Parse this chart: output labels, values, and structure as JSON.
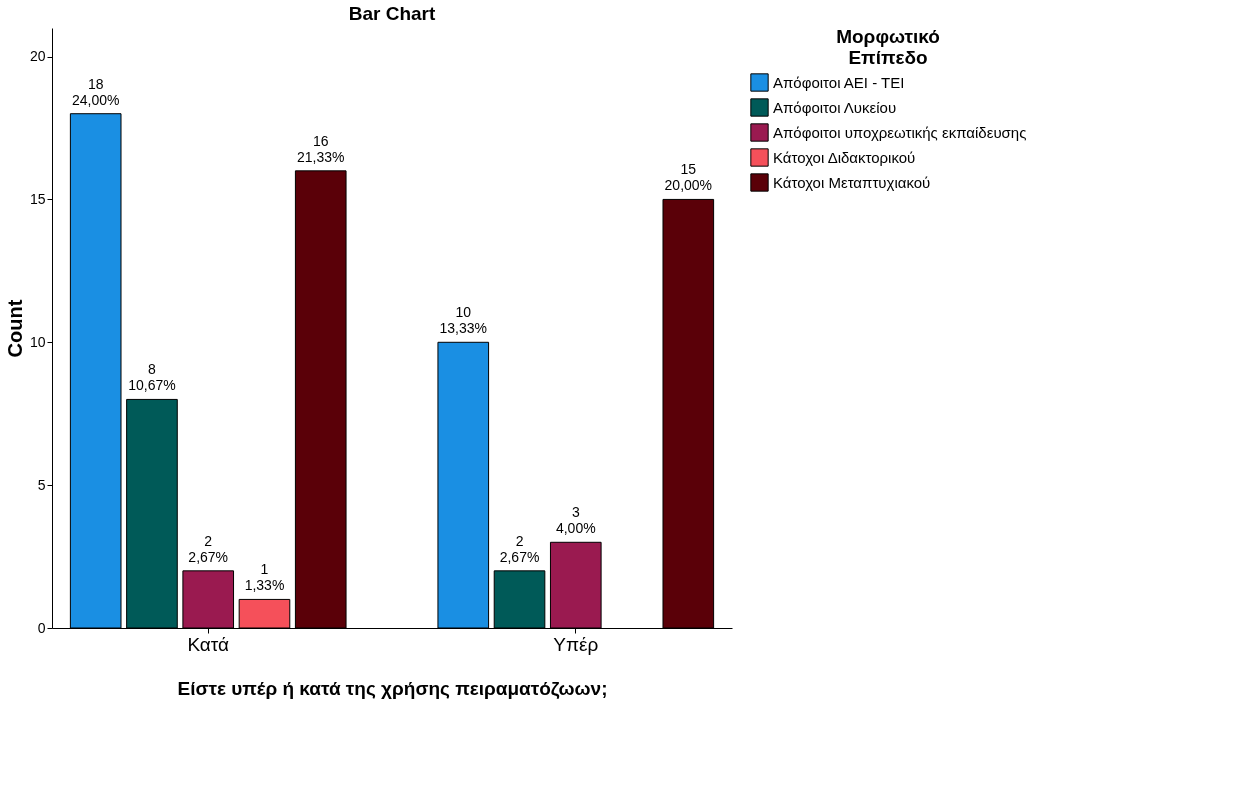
{
  "chart_data": {
    "type": "bar",
    "title": "Bar Chart",
    "xlabel": "Είστε υπέρ ή κατά της χρήσης πειραματόζωων;",
    "ylabel": "Count",
    "legend_title": "Μορφωτικό Επίπεδο",
    "categories": [
      "Κατά",
      "Υπέρ"
    ],
    "series": [
      {
        "name": "Απόφοιτοι ΑΕΙ - ΤΕΙ",
        "color": "#1a8fe3",
        "values": [
          18,
          10
        ],
        "value_labels": [
          "18\n24,00%",
          "10\n13,33%"
        ]
      },
      {
        "name": "Απόφοιτοι Λυκείου",
        "color": "#005a58",
        "values": [
          8,
          2
        ],
        "value_labels": [
          "8\n10,67%",
          "2\n2,67%"
        ]
      },
      {
        "name": "Απόφοιτοι υποχρεωτικής εκπαίδευσης",
        "color": "#9a1a50",
        "values": [
          2,
          3
        ],
        "value_labels": [
          "2\n2,67%",
          "3\n4,00%"
        ]
      },
      {
        "name": "Κάτοχοι Διδακτορικού",
        "color": "#f5505a",
        "values": [
          1,
          null
        ],
        "value_labels": [
          "1\n1,33%",
          null
        ]
      },
      {
        "name": "Κάτοχοι Μεταπτυχιακού",
        "color": "#5a0008",
        "values": [
          16,
          15
        ],
        "value_labels": [
          "16\n21,33%",
          "15\n20,00%"
        ]
      }
    ],
    "ylim": [
      0,
      21
    ],
    "yticks": [
      0,
      5,
      10,
      15,
      20
    ],
    "grid": false,
    "legend": "top right"
  }
}
